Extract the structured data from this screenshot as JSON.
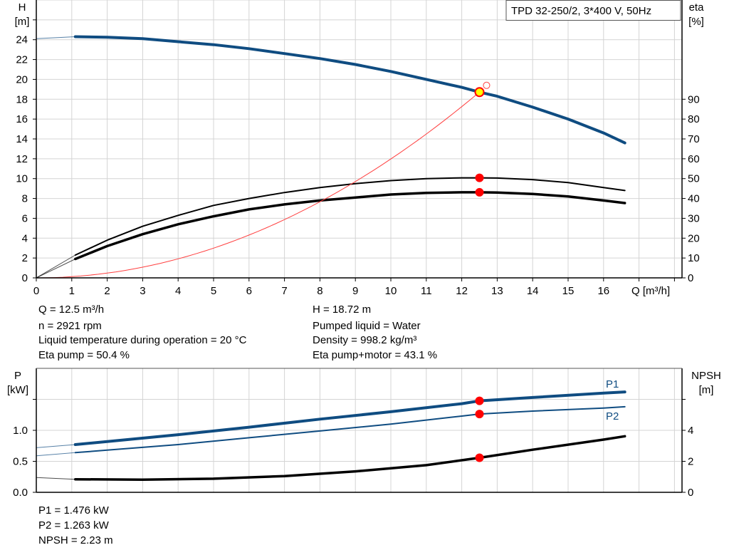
{
  "colors": {
    "head": "#0f4c81",
    "power": "#0f4c81",
    "eta": "#000000",
    "npsh": "#000000",
    "system": "#ff4040",
    "duty_point": "#ff0000",
    "duty_fill": "#ffff00",
    "grid": "#d4d4d4"
  },
  "legend_box": "TPD 32-250/2, 3*400 V, 50Hz",
  "chart_data": [
    {
      "type": "line",
      "yaxis_left": {
        "label_line1": "H",
        "label_line2": "[m]",
        "range": [
          0,
          28
        ],
        "ticks": [
          0,
          2,
          4,
          6,
          8,
          10,
          12,
          14,
          16,
          18,
          20,
          22,
          24
        ]
      },
      "yaxis_right": {
        "label_line1": "eta",
        "label_line2": "[%]",
        "range": [
          0,
          140
        ],
        "ticks": [
          0,
          10,
          20,
          30,
          40,
          50,
          60,
          70,
          80,
          90
        ]
      },
      "xaxis": {
        "label": "Q [m³/h]",
        "range": [
          0,
          18
        ],
        "ticks": [
          0,
          1,
          2,
          3,
          4,
          5,
          6,
          7,
          8,
          9,
          10,
          11,
          12,
          13,
          14,
          15,
          16
        ]
      },
      "grid": true,
      "series": [
        {
          "axis": "left",
          "style": "head",
          "extrapolated": [
            [
              0,
              24.1
            ],
            [
              1.1,
              24.3
            ]
          ],
          "points": [
            [
              1.1,
              24.3
            ],
            [
              2,
              24.25
            ],
            [
              3,
              24.1
            ],
            [
              4,
              23.8
            ],
            [
              5,
              23.5
            ],
            [
              6,
              23.1
            ],
            [
              7,
              22.6
            ],
            [
              8,
              22.1
            ],
            [
              9,
              21.5
            ],
            [
              10,
              20.8
            ],
            [
              11,
              20.0
            ],
            [
              12,
              19.2
            ],
            [
              12.5,
              18.72
            ],
            [
              13,
              18.3
            ],
            [
              14,
              17.2
            ],
            [
              15,
              16.0
            ],
            [
              16,
              14.6
            ],
            [
              16.6,
              13.6
            ]
          ]
        },
        {
          "axis": "right",
          "style": "eta-pump",
          "extrapolated": [
            [
              0,
              0
            ],
            [
              1.1,
              11.5
            ]
          ],
          "points": [
            [
              1.1,
              11.5
            ],
            [
              2,
              19
            ],
            [
              3,
              26
            ],
            [
              4,
              31.5
            ],
            [
              5,
              36.5
            ],
            [
              6,
              40
            ],
            [
              7,
              43
            ],
            [
              8,
              45.5
            ],
            [
              9,
              47.5
            ],
            [
              10,
              49
            ],
            [
              11,
              50
            ],
            [
              12,
              50.4
            ],
            [
              12.5,
              50.4
            ],
            [
              13,
              50.3
            ],
            [
              14,
              49.5
            ],
            [
              15,
              48
            ],
            [
              16,
              45.5
            ],
            [
              16.6,
              44
            ]
          ]
        },
        {
          "axis": "right",
          "style": "eta-pump-motor",
          "extrapolated": [
            [
              0,
              0
            ],
            [
              1.1,
              9.5
            ]
          ],
          "points": [
            [
              1.1,
              9.5
            ],
            [
              2,
              16
            ],
            [
              3,
              22
            ],
            [
              4,
              27
            ],
            [
              5,
              31
            ],
            [
              6,
              34.5
            ],
            [
              7,
              37
            ],
            [
              8,
              39
            ],
            [
              9,
              40.5
            ],
            [
              10,
              42
            ],
            [
              11,
              42.8
            ],
            [
              12,
              43.1
            ],
            [
              12.5,
              43.1
            ],
            [
              13,
              43
            ],
            [
              14,
              42.3
            ],
            [
              15,
              41
            ],
            [
              16,
              39
            ],
            [
              16.6,
              37.7
            ]
          ]
        },
        {
          "axis": "left",
          "style": "system-curve",
          "formula_k": 0.1198,
          "q_range": [
            0,
            12.5
          ]
        }
      ],
      "duty_points": [
        {
          "axis": "left",
          "q": 12.5,
          "value": 18.72,
          "style": "yellow"
        },
        {
          "axis": "right",
          "q": 12.5,
          "value": 50.4,
          "style": "red"
        },
        {
          "axis": "right",
          "q": 12.5,
          "value": 43.1,
          "style": "red"
        }
      ],
      "open_marker": {
        "q": 12.7,
        "value": 19.4
      }
    },
    {
      "type": "line",
      "yaxis_left": {
        "label_line1": "P",
        "label_line2": "[kW]",
        "range": [
          0,
          2
        ],
        "ticks": [
          "0.0",
          "0.5",
          "1.0"
        ]
      },
      "yaxis_right": {
        "label_line1": "NPSH",
        "label_line2": "[m]",
        "range": [
          0,
          8
        ],
        "ticks": [
          0,
          2,
          4
        ]
      },
      "xaxis": {
        "range": [
          0,
          18
        ]
      },
      "grid": true,
      "series": [
        {
          "name": "P1",
          "axis": "left",
          "style": "p1",
          "extrapolated": [
            [
              0,
              0.72
            ],
            [
              1.1,
              0.77
            ]
          ],
          "points": [
            [
              1.1,
              0.77
            ],
            [
              2,
              0.82
            ],
            [
              4,
              0.93
            ],
            [
              6,
              1.05
            ],
            [
              8,
              1.18
            ],
            [
              10,
              1.3
            ],
            [
              12,
              1.43
            ],
            [
              12.5,
              1.476
            ],
            [
              14,
              1.53
            ],
            [
              16,
              1.6
            ],
            [
              16.6,
              1.62
            ]
          ]
        },
        {
          "name": "P2",
          "axis": "left",
          "style": "p2",
          "extrapolated": [
            [
              0,
              0.59
            ],
            [
              1.1,
              0.64
            ]
          ],
          "points": [
            [
              1.1,
              0.64
            ],
            [
              2,
              0.68
            ],
            [
              4,
              0.77
            ],
            [
              6,
              0.88
            ],
            [
              8,
              0.99
            ],
            [
              10,
              1.1
            ],
            [
              12,
              1.23
            ],
            [
              12.5,
              1.263
            ],
            [
              14,
              1.31
            ],
            [
              16,
              1.36
            ],
            [
              16.6,
              1.38
            ]
          ]
        },
        {
          "axis": "right",
          "style": "npsh",
          "extrapolated": [
            [
              0,
              0.95
            ],
            [
              1.1,
              0.84
            ]
          ],
          "points": [
            [
              1.1,
              0.84
            ],
            [
              3,
              0.82
            ],
            [
              5,
              0.88
            ],
            [
              7,
              1.05
            ],
            [
              9,
              1.35
            ],
            [
              11,
              1.75
            ],
            [
              12.5,
              2.23
            ],
            [
              14,
              2.75
            ],
            [
              16,
              3.4
            ],
            [
              16.6,
              3.62
            ]
          ]
        }
      ],
      "duty_points": [
        {
          "axis": "left",
          "q": 12.5,
          "value": 1.476
        },
        {
          "axis": "left",
          "q": 12.5,
          "value": 1.263
        },
        {
          "axis": "right",
          "q": 12.5,
          "value": 2.23
        }
      ]
    }
  ],
  "info_top_left": [
    "Q = 12.5 m³/h",
    "n = 2921 rpm",
    "Liquid temperature during operation = 20 °C",
    "Eta pump = 50.4 %"
  ],
  "info_top_right": [
    "H = 18.72 m",
    "Pumped liquid = Water",
    "Density = 998.2 kg/m³",
    "Eta pump+motor = 43.1 %"
  ],
  "info_bottom": [
    "P1 = 1.476 kW",
    "P2 = 1.263 kW",
    "NPSH = 2.23 m"
  ]
}
